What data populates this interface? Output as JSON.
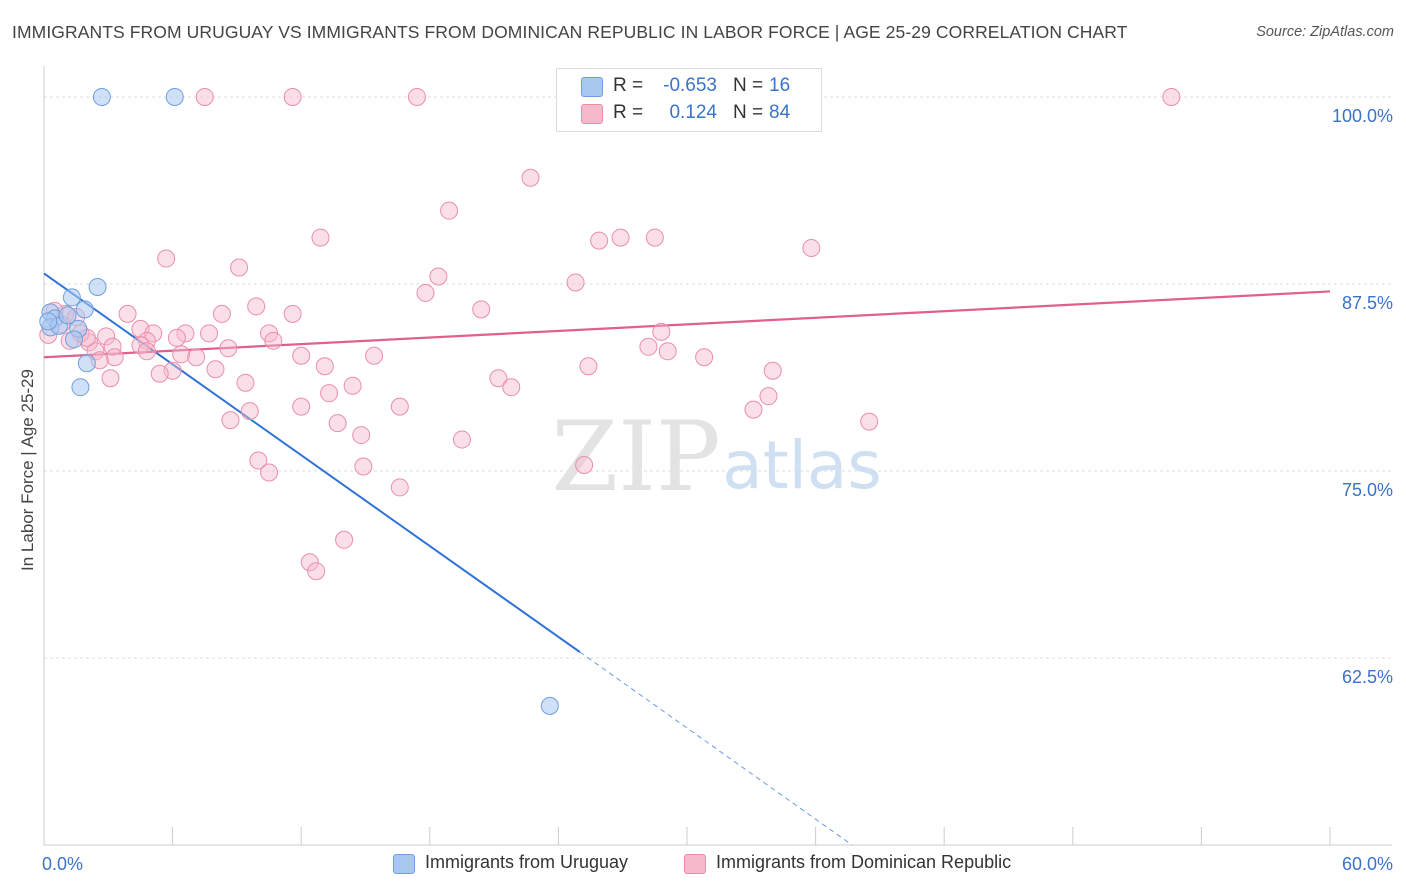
{
  "header": {
    "title": "IMMIGRANTS FROM URUGUAY VS IMMIGRANTS FROM DOMINICAN REPUBLIC IN LABOR FORCE | AGE 25-29 CORRELATION CHART",
    "source": "Source: ZipAtlas.com"
  },
  "colors": {
    "blue_fill": "#a9c8f0",
    "blue_stroke": "#6f9fe0",
    "blue_line": "#2f72d6",
    "pink_fill": "#f6b8cb",
    "pink_stroke": "#e98fab",
    "pink_line": "#e0608a",
    "axis_text": "#3b73c8",
    "grid": "#dddddd",
    "watermark": "#e3e3e3",
    "watermark_atlas": "#cfe0f3"
  },
  "legend": {
    "rows": [
      {
        "r_label": "R =",
        "r_value": "-0.653",
        "n_label": "N =",
        "n_value": "16"
      },
      {
        "r_label": "R =",
        "r_value": "0.124",
        "n_label": "N =",
        "n_value": "84"
      }
    ]
  },
  "watermark": {
    "zip": "ZIP",
    "atlas": "atlas"
  },
  "chart_data": {
    "type": "scatter",
    "title": "IMMIGRANTS FROM URUGUAY VS IMMIGRANTS FROM DOMINICAN REPUBLIC IN LABOR FORCE | AGE 25-29 CORRELATION CHART",
    "xlabel": "",
    "ylabel": "In Labor Force | Age 25-29",
    "xlim": [
      0,
      60
    ],
    "ylim": [
      50,
      101.2
    ],
    "x_tick_labels": [
      "0.0%",
      "60.0%"
    ],
    "y_ticks": [
      62.5,
      75.0,
      87.5,
      100.0
    ],
    "y_tick_labels": [
      "62.5%",
      "75.0%",
      "87.5%",
      "100.0%"
    ],
    "series": [
      {
        "name": "Immigrants from Uruguay",
        "color": "blue",
        "r": -0.653,
        "n": 16,
        "trend": {
          "x0": 0,
          "y0": 88.2,
          "x1": 25.0,
          "y1": 62.9,
          "dash_to_x": 37.7,
          "dash_to_y": 50.0
        },
        "points": [
          [
            2.7,
            100.0
          ],
          [
            6.1,
            100.0
          ],
          [
            0.3,
            85.6
          ],
          [
            0.5,
            85.2
          ],
          [
            0.3,
            84.6
          ],
          [
            0.7,
            84.7
          ],
          [
            1.1,
            85.4
          ],
          [
            1.9,
            85.8
          ],
          [
            2.5,
            87.3
          ],
          [
            1.3,
            86.6
          ],
          [
            1.6,
            84.5
          ],
          [
            1.4,
            83.8
          ],
          [
            2.0,
            82.2
          ],
          [
            1.7,
            80.6
          ],
          [
            23.6,
            59.3
          ],
          [
            0.2,
            85.0
          ]
        ]
      },
      {
        "name": "Immigrants from Dominican Republic",
        "color": "pink",
        "r": 0.124,
        "n": 84,
        "trend": {
          "x0": 0,
          "y0": 82.6,
          "x1": 60,
          "y1": 87.0
        },
        "points": [
          [
            7.5,
            100.0
          ],
          [
            11.6,
            100.0
          ],
          [
            17.4,
            100.0
          ],
          [
            52.6,
            100.0
          ],
          [
            22.7,
            94.6
          ],
          [
            18.9,
            92.4
          ],
          [
            12.9,
            90.6
          ],
          [
            25.9,
            90.4
          ],
          [
            26.9,
            90.6
          ],
          [
            28.5,
            90.6
          ],
          [
            35.8,
            89.9
          ],
          [
            5.7,
            89.2
          ],
          [
            9.1,
            88.6
          ],
          [
            18.4,
            88.0
          ],
          [
            24.8,
            87.6
          ],
          [
            17.8,
            86.9
          ],
          [
            9.9,
            86.0
          ],
          [
            20.4,
            85.8
          ],
          [
            3.9,
            85.5
          ],
          [
            8.3,
            85.5
          ],
          [
            11.6,
            85.5
          ],
          [
            4.5,
            84.5
          ],
          [
            5.1,
            84.2
          ],
          [
            6.6,
            84.2
          ],
          [
            7.7,
            84.2
          ],
          [
            10.5,
            84.2
          ],
          [
            2.9,
            84.0
          ],
          [
            6.2,
            83.9
          ],
          [
            4.8,
            83.7
          ],
          [
            10.7,
            83.7
          ],
          [
            2.1,
            83.6
          ],
          [
            4.5,
            83.4
          ],
          [
            3.2,
            83.3
          ],
          [
            8.6,
            83.2
          ],
          [
            2.4,
            83.0
          ],
          [
            4.8,
            83.0
          ],
          [
            6.4,
            82.8
          ],
          [
            12.0,
            82.7
          ],
          [
            15.4,
            82.7
          ],
          [
            7.1,
            82.6
          ],
          [
            28.8,
            84.3
          ],
          [
            28.2,
            83.3
          ],
          [
            29.1,
            83.0
          ],
          [
            30.8,
            82.6
          ],
          [
            3.3,
            82.6
          ],
          [
            2.6,
            82.4
          ],
          [
            25.4,
            82.0
          ],
          [
            13.1,
            82.0
          ],
          [
            8.0,
            81.8
          ],
          [
            6.0,
            81.7
          ],
          [
            34.0,
            81.7
          ],
          [
            5.4,
            81.5
          ],
          [
            3.1,
            81.2
          ],
          [
            21.2,
            81.2
          ],
          [
            9.4,
            80.9
          ],
          [
            21.8,
            80.6
          ],
          [
            14.4,
            80.7
          ],
          [
            13.3,
            80.2
          ],
          [
            33.8,
            80.0
          ],
          [
            12.0,
            79.3
          ],
          [
            16.6,
            79.3
          ],
          [
            33.1,
            79.1
          ],
          [
            9.6,
            79.0
          ],
          [
            8.7,
            78.4
          ],
          [
            38.5,
            78.3
          ],
          [
            13.7,
            78.2
          ],
          [
            14.8,
            77.4
          ],
          [
            19.5,
            77.1
          ],
          [
            10.0,
            75.7
          ],
          [
            14.9,
            75.3
          ],
          [
            25.2,
            75.4
          ],
          [
            10.5,
            74.9
          ],
          [
            16.6,
            73.9
          ],
          [
            14.0,
            70.4
          ],
          [
            12.4,
            68.9
          ],
          [
            12.7,
            68.3
          ],
          [
            1.0,
            85.5
          ],
          [
            1.5,
            85.3
          ],
          [
            0.8,
            84.8
          ],
          [
            1.7,
            84.2
          ],
          [
            0.2,
            84.1
          ],
          [
            1.2,
            83.7
          ],
          [
            2.0,
            83.9
          ],
          [
            0.5,
            85.7
          ]
        ]
      }
    ]
  }
}
